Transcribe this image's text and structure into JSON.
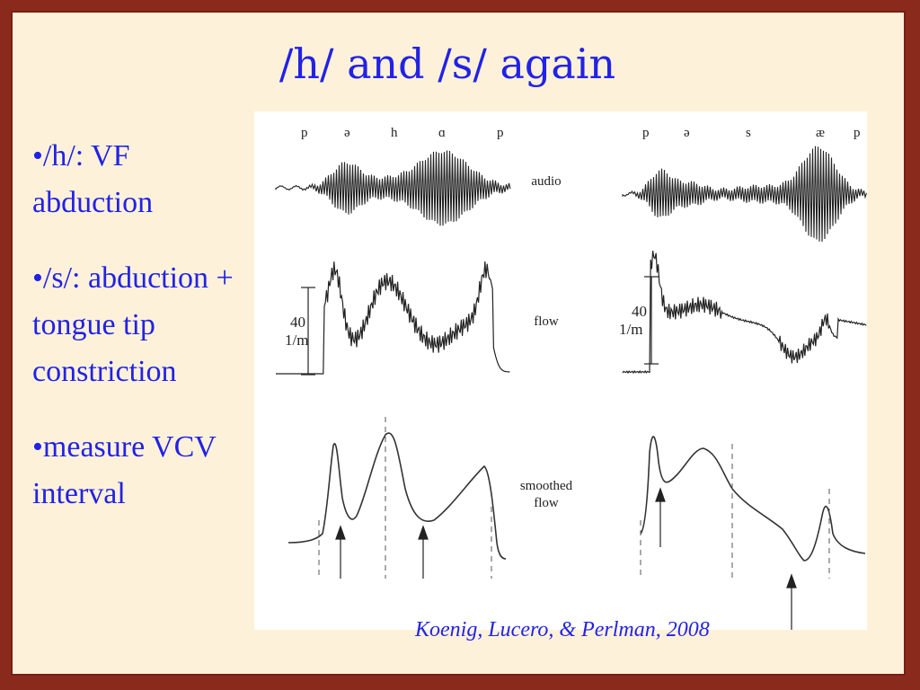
{
  "slide": {
    "title": "/h/ and /s/ again",
    "bullets": [
      "•/h/: VF abduction",
      "•/s/: abduction + tongue tip constriction",
      "•measure VCV interval"
    ],
    "citation": "Koenig, Lucero, & Perlman, 2008"
  },
  "figure": {
    "left_phonemes": [
      "p",
      "ə",
      "h",
      "ɑ",
      "p"
    ],
    "right_phonemes": [
      "p",
      "ə",
      "s",
      "æ",
      "p"
    ],
    "row_labels": {
      "audio": "audio",
      "flow": "flow",
      "smoothed_1": "smoothed",
      "smoothed_2": "flow"
    },
    "scale_value": "40",
    "scale_unit": "1/m",
    "colors": {
      "slide_bg": "#fdf2d9",
      "border": "#7a1e14",
      "text": "#2222e6",
      "trace": "#222222"
    }
  }
}
